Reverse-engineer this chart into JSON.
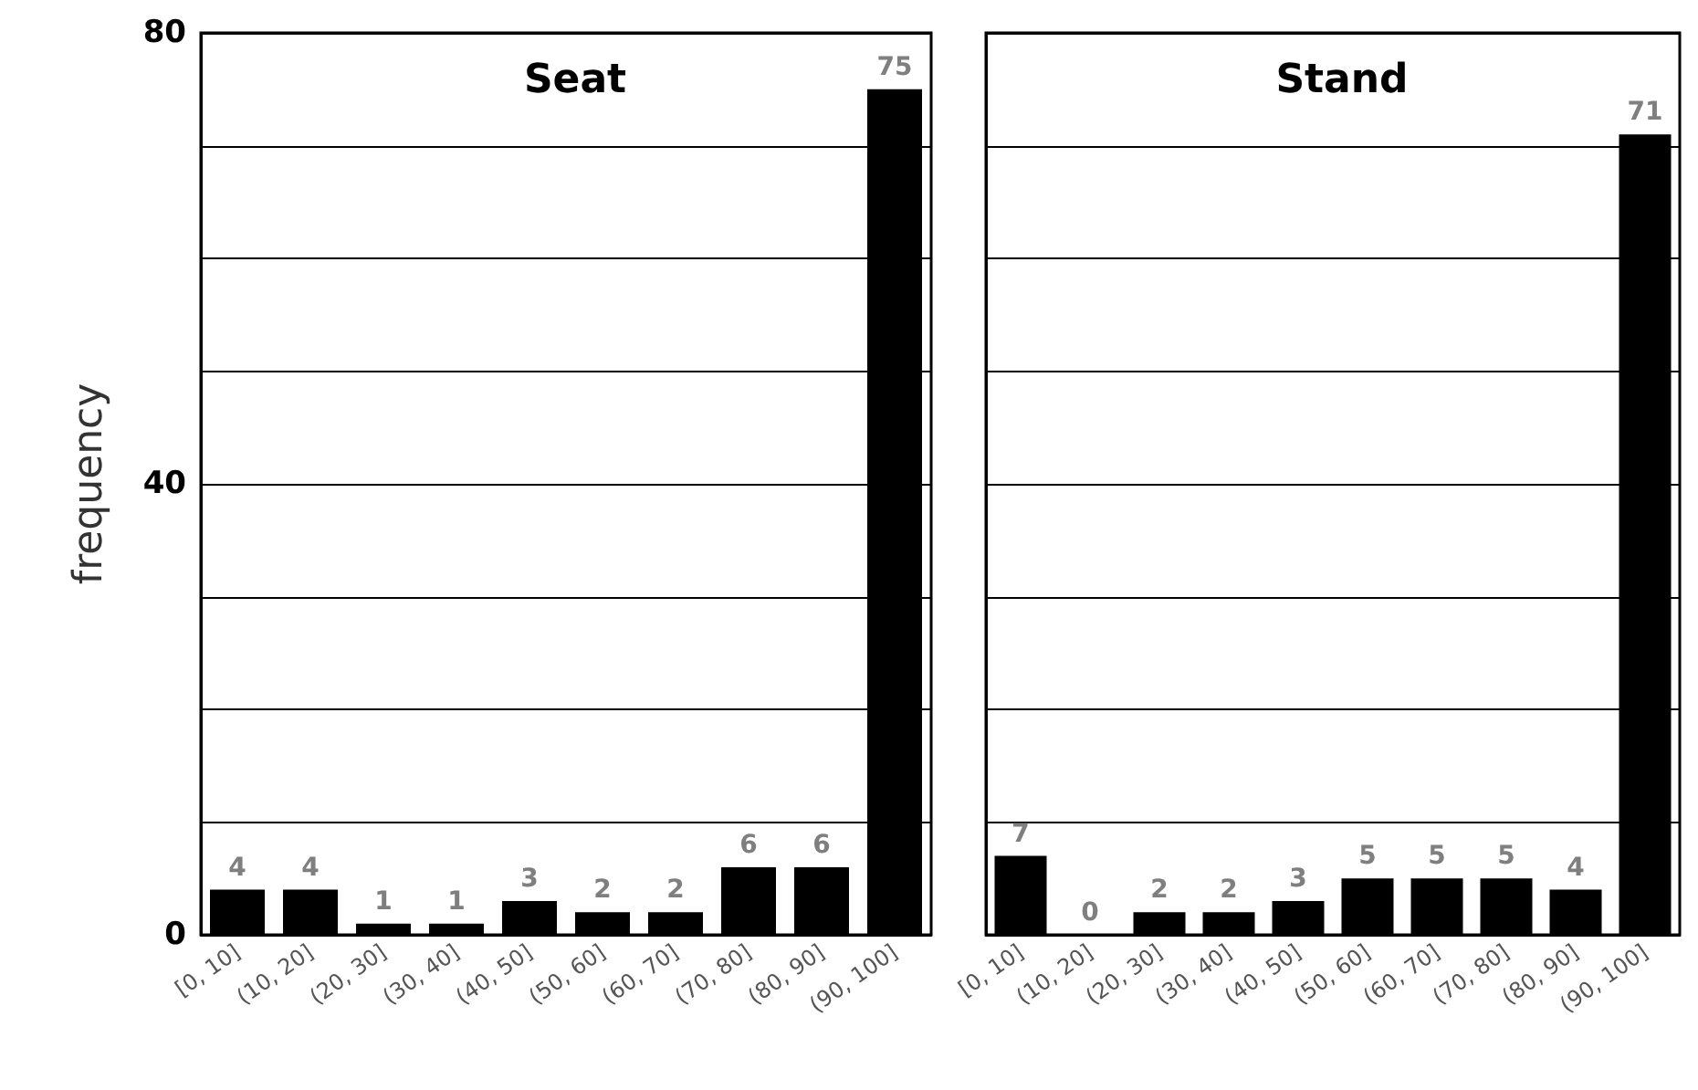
{
  "chart_data": [
    {
      "type": "bar",
      "title": "Seat",
      "ylabel": "frequency",
      "categories": [
        "[0, 10]",
        "(10, 20]",
        "(20, 30]",
        "(30, 40]",
        "(40, 50]",
        "(50, 60]",
        "(60, 70]",
        "(70, 80]",
        "(80, 90]",
        "(90, 100]"
      ],
      "values": [
        4,
        4,
        1,
        1,
        3,
        2,
        2,
        6,
        6,
        75
      ],
      "color": "#000000",
      "ylim": [
        0,
        80
      ],
      "yticks": [
        0,
        {
          "value": 10,
          "label": null
        },
        {
          "value": 20,
          "label": null
        },
        {
          "value": 30,
          "label": null
        },
        40,
        {
          "value": 50,
          "label": null
        },
        {
          "value": 60,
          "label": null
        },
        {
          "value": 70,
          "label": null
        },
        80
      ],
      "grid": "y",
      "data_labels": true
    },
    {
      "type": "bar",
      "title": "Stand",
      "categories": [
        "[0, 10]",
        "(10, 20]",
        "(20, 30]",
        "(30, 40]",
        "(40, 50]",
        "(50, 60]",
        "(60, 70]",
        "(70, 80]",
        "(80, 90]",
        "(90, 100]"
      ],
      "values": [
        7,
        0,
        2,
        2,
        3,
        5,
        5,
        5,
        4,
        71
      ],
      "color": "#000000",
      "ylim": [
        0,
        80
      ],
      "yticks": [
        0,
        {
          "value": 10,
          "label": null
        },
        {
          "value": 20,
          "label": null
        },
        {
          "value": 30,
          "label": null
        },
        40,
        {
          "value": 50,
          "label": null
        },
        {
          "value": 60,
          "label": null
        },
        {
          "value": 70,
          "label": null
        },
        80
      ],
      "grid": "y",
      "data_labels": true,
      "tick_labels": "x"
    }
  ]
}
